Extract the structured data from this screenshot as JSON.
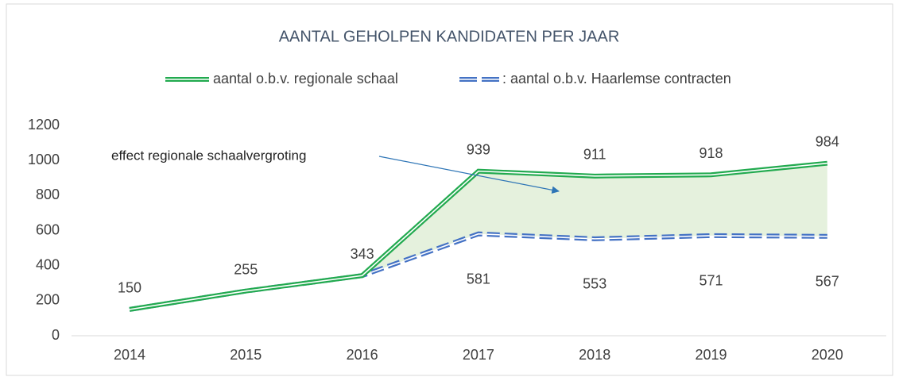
{
  "chart_data": {
    "type": "line",
    "title": "AANTAL GEHOLPEN KANDIDATEN PER JAAR",
    "categories": [
      "2014",
      "2015",
      "2016",
      "2017",
      "2018",
      "2019",
      "2020"
    ],
    "series": [
      {
        "name": "aantal o.b.v. regionale schaal",
        "color": "#22aa4f",
        "values": [
          150,
          255,
          343,
          939,
          911,
          918,
          984
        ]
      },
      {
        "name": ": aantal o.b.v. Haarlemse contracten",
        "color": "#4472c4",
        "values": [
          150,
          255,
          343,
          581,
          553,
          571,
          567
        ]
      }
    ],
    "annotation": "effect regionale schaalvergroting",
    "ylim": [
      0,
      1200
    ],
    "yticks": [
      0,
      200,
      400,
      600,
      800,
      1000,
      1200
    ],
    "fill_between": true,
    "fill_color": "#e2efd9"
  }
}
